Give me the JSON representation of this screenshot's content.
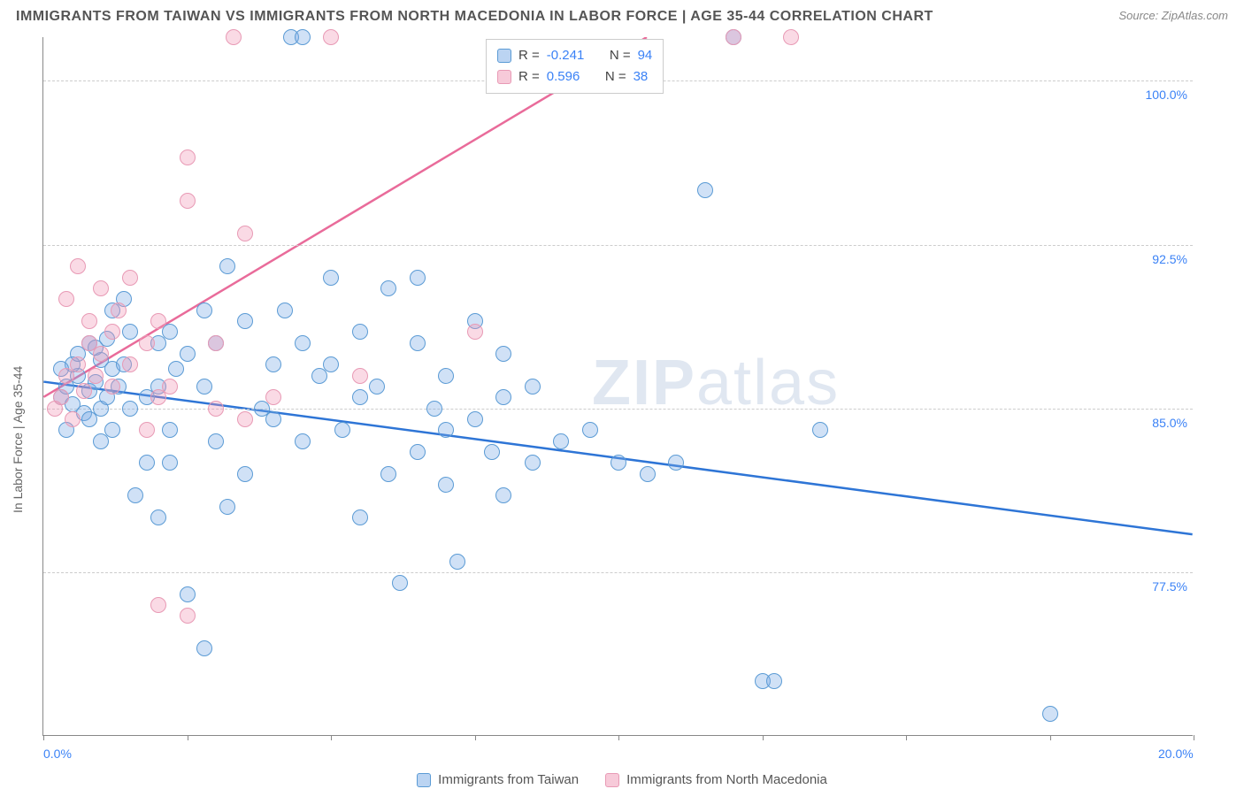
{
  "header": {
    "title": "IMMIGRANTS FROM TAIWAN VS IMMIGRANTS FROM NORTH MACEDONIA IN LABOR FORCE | AGE 35-44 CORRELATION CHART",
    "source": "Source: ZipAtlas.com"
  },
  "chart": {
    "type": "scatter",
    "y_axis_title": "In Labor Force | Age 35-44",
    "xlim": [
      0,
      20
    ],
    "ylim": [
      70,
      102
    ],
    "x_ticks": [
      0,
      2.5,
      5,
      7.5,
      10,
      12.5,
      15,
      17.5,
      20
    ],
    "x_tick_labels": {
      "0": "0.0%",
      "20": "20.0%"
    },
    "y_ticks": [
      77.5,
      85.0,
      92.5,
      100.0
    ],
    "y_tick_labels": [
      "77.5%",
      "85.0%",
      "92.5%",
      "100.0%"
    ],
    "background_color": "#ffffff",
    "grid_color": "#cccccc",
    "axis_color": "#888888",
    "tick_label_color": "#3b82f6",
    "marker_size": 18,
    "marker_stroke_width": 1.5,
    "watermark": "ZIPatlas",
    "series": [
      {
        "name": "Immigrants from Taiwan",
        "fill": "rgba(120,170,230,0.35)",
        "stroke": "#5b9bd5",
        "line_color": "#2e75d6",
        "line_width": 2.5,
        "R": "-0.241",
        "N": "94",
        "trend": {
          "x1": 0,
          "y1": 86.2,
          "x2": 20,
          "y2": 79.2
        },
        "points": [
          [
            0.3,
            85.5
          ],
          [
            0.4,
            86.0
          ],
          [
            0.5,
            85.2
          ],
          [
            0.6,
            86.5
          ],
          [
            0.7,
            84.8
          ],
          [
            0.8,
            85.8
          ],
          [
            0.9,
            86.2
          ],
          [
            1.0,
            85.0
          ],
          [
            0.5,
            87.0
          ],
          [
            0.6,
            87.5
          ],
          [
            0.8,
            88.0
          ],
          [
            1.0,
            87.2
          ],
          [
            1.2,
            86.8
          ],
          [
            1.1,
            85.5
          ],
          [
            1.3,
            86.0
          ],
          [
            1.4,
            87.0
          ],
          [
            1.5,
            88.5
          ],
          [
            1.0,
            83.5
          ],
          [
            1.2,
            84.0
          ],
          [
            1.5,
            85.0
          ],
          [
            1.8,
            85.5
          ],
          [
            2.0,
            86.0
          ],
          [
            2.0,
            88.0
          ],
          [
            2.2,
            88.5
          ],
          [
            2.5,
            87.5
          ],
          [
            2.3,
            86.8
          ],
          [
            2.8,
            86.0
          ],
          [
            3.0,
            88.0
          ],
          [
            3.2,
            91.5
          ],
          [
            3.5,
            89.0
          ],
          [
            3.8,
            85.0
          ],
          [
            4.0,
            87.0
          ],
          [
            4.2,
            89.5
          ],
          [
            4.3,
            102.0
          ],
          [
            4.5,
            102.0
          ],
          [
            4.5,
            83.5
          ],
          [
            4.8,
            86.5
          ],
          [
            5.0,
            91.0
          ],
          [
            5.2,
            84.0
          ],
          [
            5.5,
            88.5
          ],
          [
            5.5,
            80.0
          ],
          [
            5.8,
            86.0
          ],
          [
            6.0,
            82.0
          ],
          [
            6.0,
            90.5
          ],
          [
            6.2,
            77.0
          ],
          [
            6.5,
            83.0
          ],
          [
            6.5,
            88.0
          ],
          [
            6.8,
            85.0
          ],
          [
            7.0,
            81.5
          ],
          [
            7.0,
            86.5
          ],
          [
            7.2,
            78.0
          ],
          [
            7.5,
            84.5
          ],
          [
            7.5,
            89.0
          ],
          [
            7.8,
            83.0
          ],
          [
            8.0,
            85.5
          ],
          [
            8.0,
            81.0
          ],
          [
            8.0,
            87.5
          ],
          [
            8.5,
            86.0
          ],
          [
            8.5,
            82.5
          ],
          [
            9.0,
            83.5
          ],
          [
            9.5,
            84.0
          ],
          [
            10.0,
            82.5
          ],
          [
            10.5,
            82.0
          ],
          [
            11.0,
            82.5
          ],
          [
            11.5,
            95.0
          ],
          [
            12.0,
            102.0
          ],
          [
            12.5,
            72.5
          ],
          [
            12.7,
            72.5
          ],
          [
            13.5,
            84.0
          ],
          [
            17.5,
            71.0
          ],
          [
            1.6,
            81.0
          ],
          [
            2.0,
            80.0
          ],
          [
            2.2,
            82.5
          ],
          [
            2.5,
            76.5
          ],
          [
            2.8,
            74.0
          ],
          [
            3.0,
            83.5
          ],
          [
            3.2,
            80.5
          ],
          [
            3.5,
            82.0
          ],
          [
            1.2,
            89.5
          ],
          [
            1.4,
            90.0
          ],
          [
            2.8,
            89.5
          ],
          [
            1.8,
            82.5
          ],
          [
            2.2,
            84.0
          ],
          [
            4.0,
            84.5
          ],
          [
            4.5,
            88.0
          ],
          [
            5.0,
            87.0
          ],
          [
            5.5,
            85.5
          ],
          [
            6.5,
            91.0
          ],
          [
            7.0,
            84.0
          ],
          [
            0.8,
            84.5
          ],
          [
            0.9,
            87.8
          ],
          [
            1.1,
            88.2
          ],
          [
            0.4,
            84.0
          ],
          [
            0.3,
            86.8
          ]
        ]
      },
      {
        "name": "Immigrants from North Macedonia",
        "fill": "rgba(240,150,180,0.35)",
        "stroke": "#e89ab5",
        "line_color": "#e96b9a",
        "line_width": 2.5,
        "R": "0.596",
        "N": "38",
        "trend": {
          "x1": 0,
          "y1": 85.5,
          "x2": 10.5,
          "y2": 102.0
        },
        "points": [
          [
            0.2,
            85.0
          ],
          [
            0.3,
            85.5
          ],
          [
            0.4,
            86.5
          ],
          [
            0.5,
            84.5
          ],
          [
            0.6,
            87.0
          ],
          [
            0.7,
            85.8
          ],
          [
            0.8,
            88.0
          ],
          [
            0.9,
            86.5
          ],
          [
            0.4,
            90.0
          ],
          [
            0.6,
            91.5
          ],
          [
            0.8,
            89.0
          ],
          [
            1.0,
            87.5
          ],
          [
            1.0,
            90.5
          ],
          [
            1.2,
            88.5
          ],
          [
            1.2,
            86.0
          ],
          [
            1.3,
            89.5
          ],
          [
            1.5,
            87.0
          ],
          [
            1.5,
            91.0
          ],
          [
            1.8,
            84.0
          ],
          [
            1.8,
            88.0
          ],
          [
            2.0,
            85.5
          ],
          [
            2.0,
            89.0
          ],
          [
            2.0,
            76.0
          ],
          [
            2.2,
            86.0
          ],
          [
            2.5,
            94.5
          ],
          [
            2.5,
            96.5
          ],
          [
            2.5,
            75.5
          ],
          [
            3.0,
            88.0
          ],
          [
            3.0,
            85.0
          ],
          [
            3.3,
            102.0
          ],
          [
            3.5,
            84.5
          ],
          [
            3.5,
            93.0
          ],
          [
            4.0,
            85.5
          ],
          [
            5.0,
            102.0
          ],
          [
            5.5,
            86.5
          ],
          [
            7.5,
            88.5
          ],
          [
            12.0,
            102.0
          ],
          [
            13.0,
            102.0
          ]
        ]
      }
    ],
    "stats_box": {
      "rows": [
        {
          "swatch_fill": "rgba(120,170,230,0.5)",
          "swatch_stroke": "#5b9bd5",
          "R_label": "R = ",
          "R": "-0.241",
          "N_label": "N = ",
          "N": "94"
        },
        {
          "swatch_fill": "rgba(240,150,180,0.5)",
          "swatch_stroke": "#e89ab5",
          "R_label": "R = ",
          "R": " 0.596",
          "N_label": "N = ",
          "N": "38"
        }
      ]
    },
    "bottom_legend": [
      {
        "swatch_fill": "rgba(120,170,230,0.5)",
        "swatch_stroke": "#5b9bd5",
        "label": "Immigrants from Taiwan"
      },
      {
        "swatch_fill": "rgba(240,150,180,0.5)",
        "swatch_stroke": "#e89ab5",
        "label": "Immigrants from North Macedonia"
      }
    ]
  }
}
